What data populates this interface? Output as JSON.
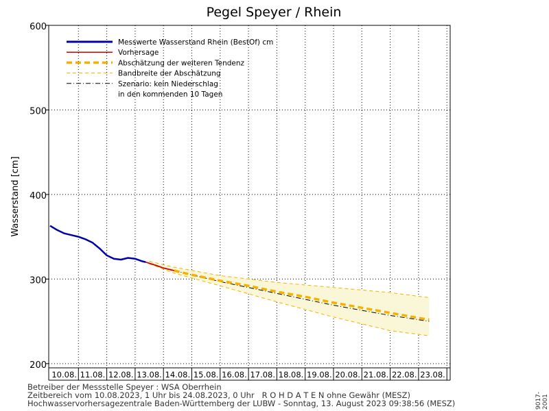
{
  "chart_data": {
    "type": "line",
    "title": "Pegel Speyer / Rhein",
    "ylabel": "Wasserstand [cm]",
    "xlabel": "",
    "ylim": [
      195,
      600
    ],
    "yticks": [
      200,
      300,
      400,
      500,
      600
    ],
    "x_start": "10.08.2023 01:00",
    "x_end": "24.08.2023 00:00",
    "x_tick_labels": [
      "10.08.",
      "11.08.",
      "12.08.",
      "13.08.",
      "14.08.",
      "15.08.",
      "16.08.",
      "17.08.",
      "18.08.",
      "19.08.",
      "20.08.",
      "21.08.",
      "22.08.",
      "23.08."
    ],
    "grid": true,
    "legend_position": "top-left",
    "legend": [
      "Messwerte Wasserstand Rhein (BestOf)  cm",
      "Vorhersage",
      "Abschätzung der weiteren Tendenz",
      "Bandbreite der Abschätzung",
      "Szenario: kein Niederschlag",
      "in den kommenden 10 Tagen"
    ],
    "series": [
      {
        "name": "Messwerte Wasserstand Rhein (BestOf)  cm",
        "color": "#0000aa",
        "style": "solid",
        "points": [
          [
            "10.08. 00:00",
            363
          ],
          [
            "10.08. 06:00",
            358
          ],
          [
            "10.08. 12:00",
            354
          ],
          [
            "10.08. 18:00",
            352
          ],
          [
            "11.08. 00:00",
            350
          ],
          [
            "11.08. 06:00",
            347
          ],
          [
            "11.08. 12:00",
            343
          ],
          [
            "11.08. 18:00",
            336
          ],
          [
            "12.08. 00:00",
            328
          ],
          [
            "12.08. 06:00",
            324
          ],
          [
            "12.08. 12:00",
            323
          ],
          [
            "12.08. 18:00",
            325
          ],
          [
            "13.08. 00:00",
            324
          ],
          [
            "13.08. 06:00",
            321
          ],
          [
            "13.08. 09:00",
            320
          ]
        ]
      },
      {
        "name": "Vorhersage",
        "color": "#cc0000",
        "style": "solid",
        "points": [
          [
            "13.08. 09:00",
            320
          ],
          [
            "13.08. 18:00",
            316
          ],
          [
            "14.08. 00:00",
            313
          ],
          [
            "14.08. 09:00",
            310
          ]
        ]
      },
      {
        "name": "Abschätzung der weiteren Tendenz",
        "color": "#f5b000",
        "style": "thick-dashed",
        "points": [
          [
            "14.08. 09:00",
            310
          ],
          [
            "15.08. 00:00",
            305
          ],
          [
            "16.08. 00:00",
            298
          ],
          [
            "17.08. 00:00",
            292
          ],
          [
            "18.08. 00:00",
            285
          ],
          [
            "19.08. 00:00",
            279
          ],
          [
            "20.08. 00:00",
            272
          ],
          [
            "21.08. 00:00",
            266
          ],
          [
            "22.08. 00:00",
            260
          ],
          [
            "23.08. 00:00",
            254
          ],
          [
            "23.08. 09:00",
            252
          ]
        ]
      },
      {
        "name": "Bandbreite der Abschätzung",
        "color": "#f5b000",
        "style": "thin-dashed",
        "upper": [
          [
            "13.08. 12:00",
            321
          ],
          [
            "14.08. 09:00",
            314
          ],
          [
            "16.08. 00:00",
            304
          ],
          [
            "18.08. 00:00",
            296
          ],
          [
            "20.08. 00:00",
            290
          ],
          [
            "22.08. 00:00",
            284
          ],
          [
            "23.08. 09:00",
            278
          ]
        ],
        "lower": [
          [
            "13.08. 12:00",
            318
          ],
          [
            "14.08. 09:00",
            307
          ],
          [
            "16.08. 00:00",
            292
          ],
          [
            "18.08. 00:00",
            273
          ],
          [
            "20.08. 00:00",
            255
          ],
          [
            "22.08. 00:00",
            239
          ],
          [
            "23.08. 09:00",
            233
          ]
        ]
      },
      {
        "name": "Szenario: kein Niederschlag",
        "color": "#000000",
        "style": "dash-dot",
        "points": [
          [
            "14.08. 09:00",
            310
          ],
          [
            "16.08. 00:00",
            297
          ],
          [
            "18.08. 00:00",
            283
          ],
          [
            "20.08. 00:00",
            269
          ],
          [
            "22.08. 00:00",
            257
          ],
          [
            "23.08. 09:00",
            250
          ]
        ]
      }
    ]
  },
  "footer": {
    "line1": "Betreiber der Messstelle Speyer : WSA Oberrhein",
    "line2": "Zeitbereich vom 10.08.2023, 1 Uhr bis 24.08.2023, 0 Uhr   R O H D A T E N ohne Gewähr (MESZ)",
    "line3": "Hochwasservorhersagezentrale Baden-Württemberg der LUBW - Sonntag, 13. August 2023 09:38:56 (MESZ)"
  },
  "side_code": "9017-2001"
}
